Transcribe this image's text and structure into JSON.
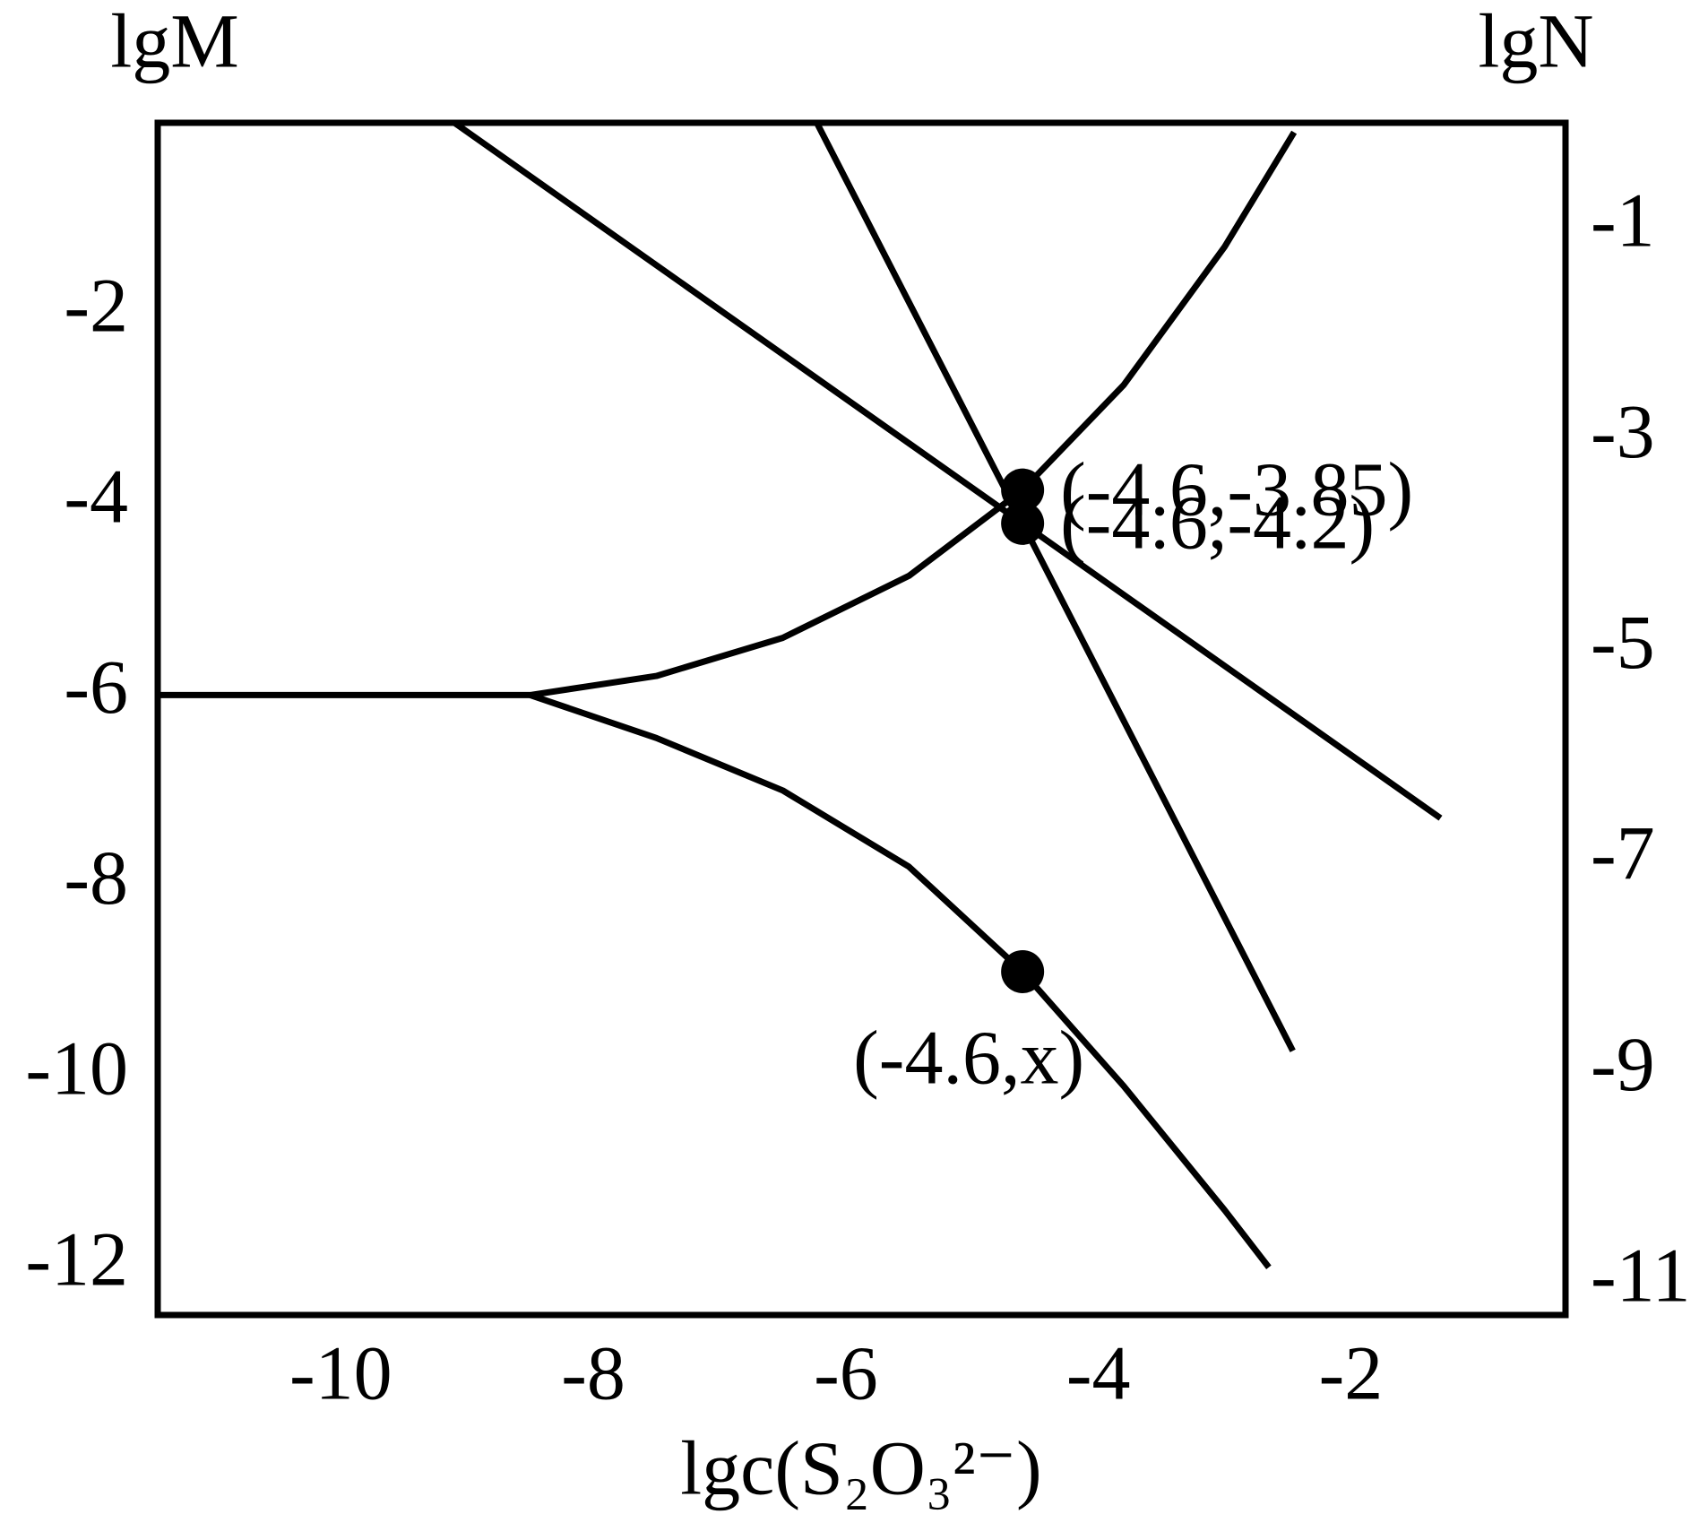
{
  "chart_data": {
    "type": "line",
    "xlabel": "lgc(S₂O₃²⁻)",
    "ylabel": "lgM",
    "y2label": "lgN",
    "xlim": [
      -11.45,
      -0.3
    ],
    "xticks": [
      -10,
      -8,
      -6,
      -4,
      -2
    ],
    "ylim": [
      -12.5,
      0
    ],
    "yticks": [
      -2,
      -4,
      -6,
      -8,
      -10,
      -12
    ],
    "y2lim": [
      -11.3,
      0
    ],
    "y2ticks": [
      -1,
      -3,
      -5,
      -7,
      -9,
      -11
    ],
    "grid": false,
    "series": [
      {
        "color": "#000000",
        "x": [
          -9.1,
          -4.6,
          -1.29
        ],
        "values": [
          0,
          -4.2,
          -7.29
        ]
      },
      {
        "color": "#000000",
        "x": [
          -6.23,
          -4.6,
          -2.46
        ],
        "values": [
          0,
          -4.2,
          -9.73
        ]
      },
      {
        "color": "#000000",
        "x": [
          -11.45,
          -8.5,
          -7.5,
          -6.5,
          -5.5,
          -4.6,
          -3.8,
          -3.0,
          -2.45
        ],
        "values": [
          -6,
          -6,
          -5.8,
          -5.4,
          -4.75,
          -3.85,
          -2.75,
          -1.3,
          -0.1
        ]
      },
      {
        "color": "#000000",
        "x": [
          -8.5,
          -7.5,
          -6.5,
          -5.5,
          -4.6,
          -3.8,
          -3.0,
          -2.65
        ],
        "values": [
          -6,
          -6.45,
          -7.0,
          -7.8,
          -8.9,
          -10.1,
          -11.4,
          -12.0
        ]
      }
    ],
    "points": [
      {
        "x": -4.6,
        "y": -3.85,
        "label": "(-4.6,-3.85)"
      },
      {
        "x": -4.6,
        "y": -4.2,
        "label": "(-4.6,-4.2)"
      },
      {
        "x": -4.6,
        "y": -8.9,
        "label": "(-4.6,x)"
      }
    ]
  }
}
